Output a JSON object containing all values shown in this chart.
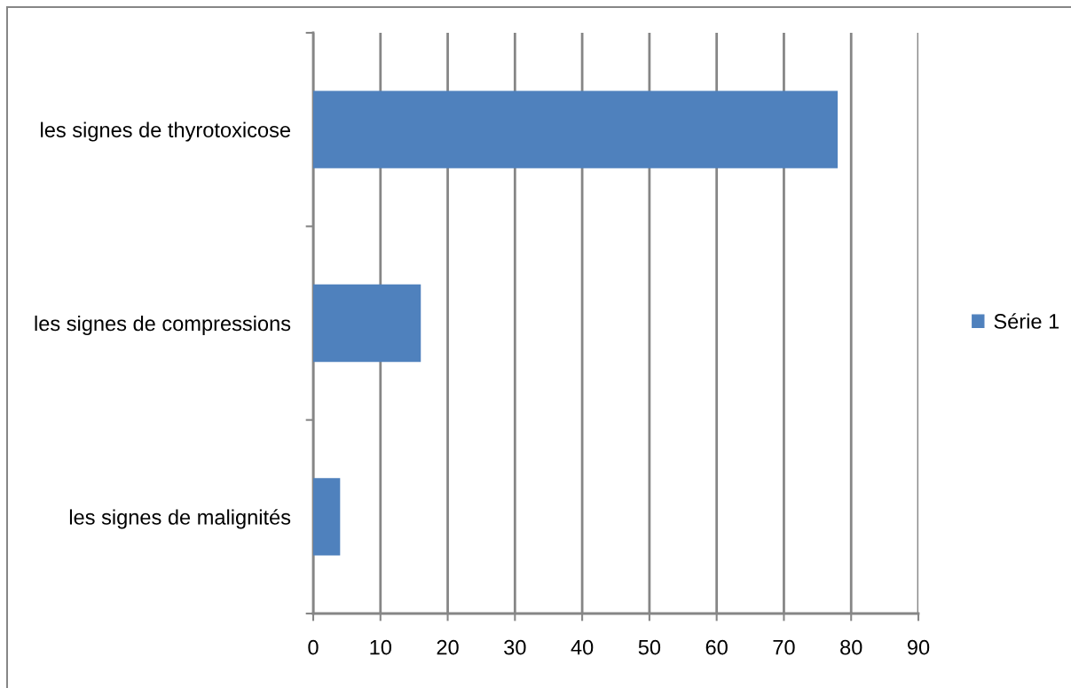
{
  "chart_data": {
    "type": "bar",
    "orientation": "horizontal",
    "categories": [
      "les signes de thyrotoxicose",
      "les signes de compressions",
      "les signes de malignités"
    ],
    "series": [
      {
        "name": "Série 1",
        "color": "#4f81bd",
        "values": [
          78,
          16,
          4
        ]
      }
    ],
    "xlim": [
      0,
      90
    ],
    "xticks": [
      0,
      10,
      20,
      30,
      40,
      50,
      60,
      70,
      80,
      90
    ],
    "grid": "x",
    "legend": "right"
  }
}
